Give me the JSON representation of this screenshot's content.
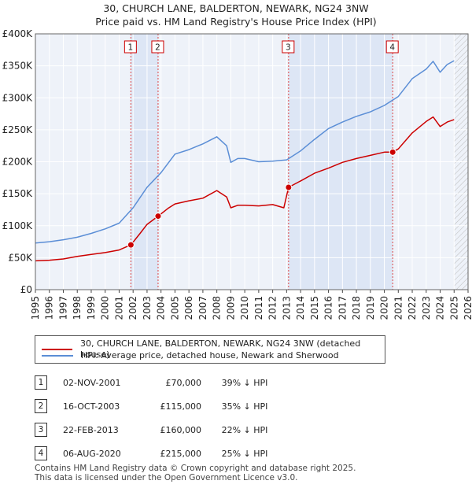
{
  "title_line1": "30, CHURCH LANE, BALDERTON, NEWARK, NG24 3NW",
  "title_line2": "Price paid vs. HM Land Registry's House Price Index (HPI)",
  "chart_data": {
    "type": "line",
    "title": "30, CHURCH LANE, BALDERTON, NEWARK, NG24 3NW - Price paid vs. HM Land Registry's House Price Index (HPI)",
    "xlim": [
      1995,
      2026
    ],
    "ylim": [
      0,
      400000
    ],
    "x_ticks": [
      "1995",
      "1996",
      "1997",
      "1998",
      "1999",
      "2000",
      "2001",
      "2002",
      "2003",
      "2004",
      "2005",
      "2006",
      "2007",
      "2008",
      "2009",
      "2010",
      "2011",
      "2012",
      "2013",
      "2014",
      "2015",
      "2016",
      "2017",
      "2018",
      "2019",
      "2020",
      "2021",
      "2022",
      "2023",
      "2024",
      "2025",
      "2026"
    ],
    "y_ticks": [
      {
        "value": 0,
        "label": "£0"
      },
      {
        "value": 50000,
        "label": "£50K"
      },
      {
        "value": 100000,
        "label": "£100K"
      },
      {
        "value": 150000,
        "label": "£150K"
      },
      {
        "value": 200000,
        "label": "£200K"
      },
      {
        "value": 250000,
        "label": "£250K"
      },
      {
        "value": 300000,
        "label": "£300K"
      },
      {
        "value": 350000,
        "label": "£350K"
      },
      {
        "value": 400000,
        "label": "£400K"
      }
    ],
    "grid": true,
    "shaded_ranges": [
      [
        2001.84,
        2003.79
      ],
      [
        2013.14,
        2020.6
      ]
    ],
    "future_hatch_from": 2025.0,
    "series": [
      {
        "name": "30, CHURCH LANE, BALDERTON, NEWARK, NG24 3NW (detached house)",
        "color": "#cc0000",
        "x": [
          1995,
          1996,
          1997,
          1998,
          1999,
          2000,
          2001,
          2001.84,
          2002.5,
          2003,
          2003.79,
          2004.5,
          2005,
          2006,
          2007,
          2008,
          2008.7,
          2009,
          2009.5,
          2010,
          2011,
          2012,
          2012.8,
          2013.14,
          2014,
          2015,
          2016,
          2017,
          2018,
          2019,
          2020,
          2020.6,
          2021,
          2022,
          2023,
          2023.5,
          2024,
          2024.5,
          2025
        ],
        "y": [
          45000,
          46000,
          48000,
          52000,
          55000,
          58000,
          62000,
          70000,
          88000,
          102000,
          115000,
          127000,
          134000,
          139000,
          143000,
          155000,
          145000,
          128000,
          132000,
          132000,
          131000,
          133000,
          128000,
          160000,
          170000,
          182000,
          190000,
          199000,
          205000,
          210000,
          215000,
          215000,
          220000,
          245000,
          263000,
          270000,
          255000,
          262000,
          266000
        ]
      },
      {
        "name": "HPI: Average price, detached house, Newark and Sherwood",
        "color": "#5b8ed6",
        "x": [
          1995,
          1996,
          1997,
          1998,
          1999,
          2000,
          2001,
          2002,
          2003,
          2004,
          2005,
          2006,
          2007,
          2008,
          2008.7,
          2009,
          2009.5,
          2010,
          2011,
          2012,
          2013,
          2014,
          2015,
          2016,
          2017,
          2018,
          2019,
          2020,
          2021,
          2022,
          2023,
          2023.5,
          2024,
          2024.5,
          2025
        ],
        "y": [
          73000,
          75000,
          78000,
          82000,
          88000,
          95000,
          104000,
          128000,
          160000,
          183000,
          212000,
          219000,
          228000,
          239000,
          225000,
          199000,
          205000,
          205000,
          200000,
          201000,
          203000,
          217000,
          235000,
          252000,
          262000,
          271000,
          278000,
          288000,
          302000,
          330000,
          345000,
          357000,
          340000,
          352000,
          358000
        ]
      }
    ],
    "transactions": [
      {
        "num": "1",
        "x": 2001.84,
        "y": 70000
      },
      {
        "num": "2",
        "x": 2003.79,
        "y": 115000
      },
      {
        "num": "3",
        "x": 2013.14,
        "y": 160000
      },
      {
        "num": "4",
        "x": 2020.6,
        "y": 215000
      }
    ]
  },
  "legend": {
    "property_label": "30, CHURCH LANE, BALDERTON, NEWARK, NG24 3NW (detached house)",
    "hpi_label": "HPI: Average price, detached house, Newark and Sherwood",
    "property_color": "#cc0000",
    "hpi_color": "#5b8ed6"
  },
  "table": [
    {
      "num": "1",
      "date": "02-NOV-2001",
      "price": "£70,000",
      "hpi": "39% ↓ HPI"
    },
    {
      "num": "2",
      "date": "16-OCT-2003",
      "price": "£115,000",
      "hpi": "35% ↓ HPI"
    },
    {
      "num": "3",
      "date": "22-FEB-2013",
      "price": "£160,000",
      "hpi": "22% ↓ HPI"
    },
    {
      "num": "4",
      "date": "06-AUG-2020",
      "price": "£215,000",
      "hpi": "25% ↓ HPI"
    }
  ],
  "footer_line1": "Contains HM Land Registry data © Crown copyright and database right 2025.",
  "footer_line2": "This data is licensed under the Open Government Licence v3.0."
}
